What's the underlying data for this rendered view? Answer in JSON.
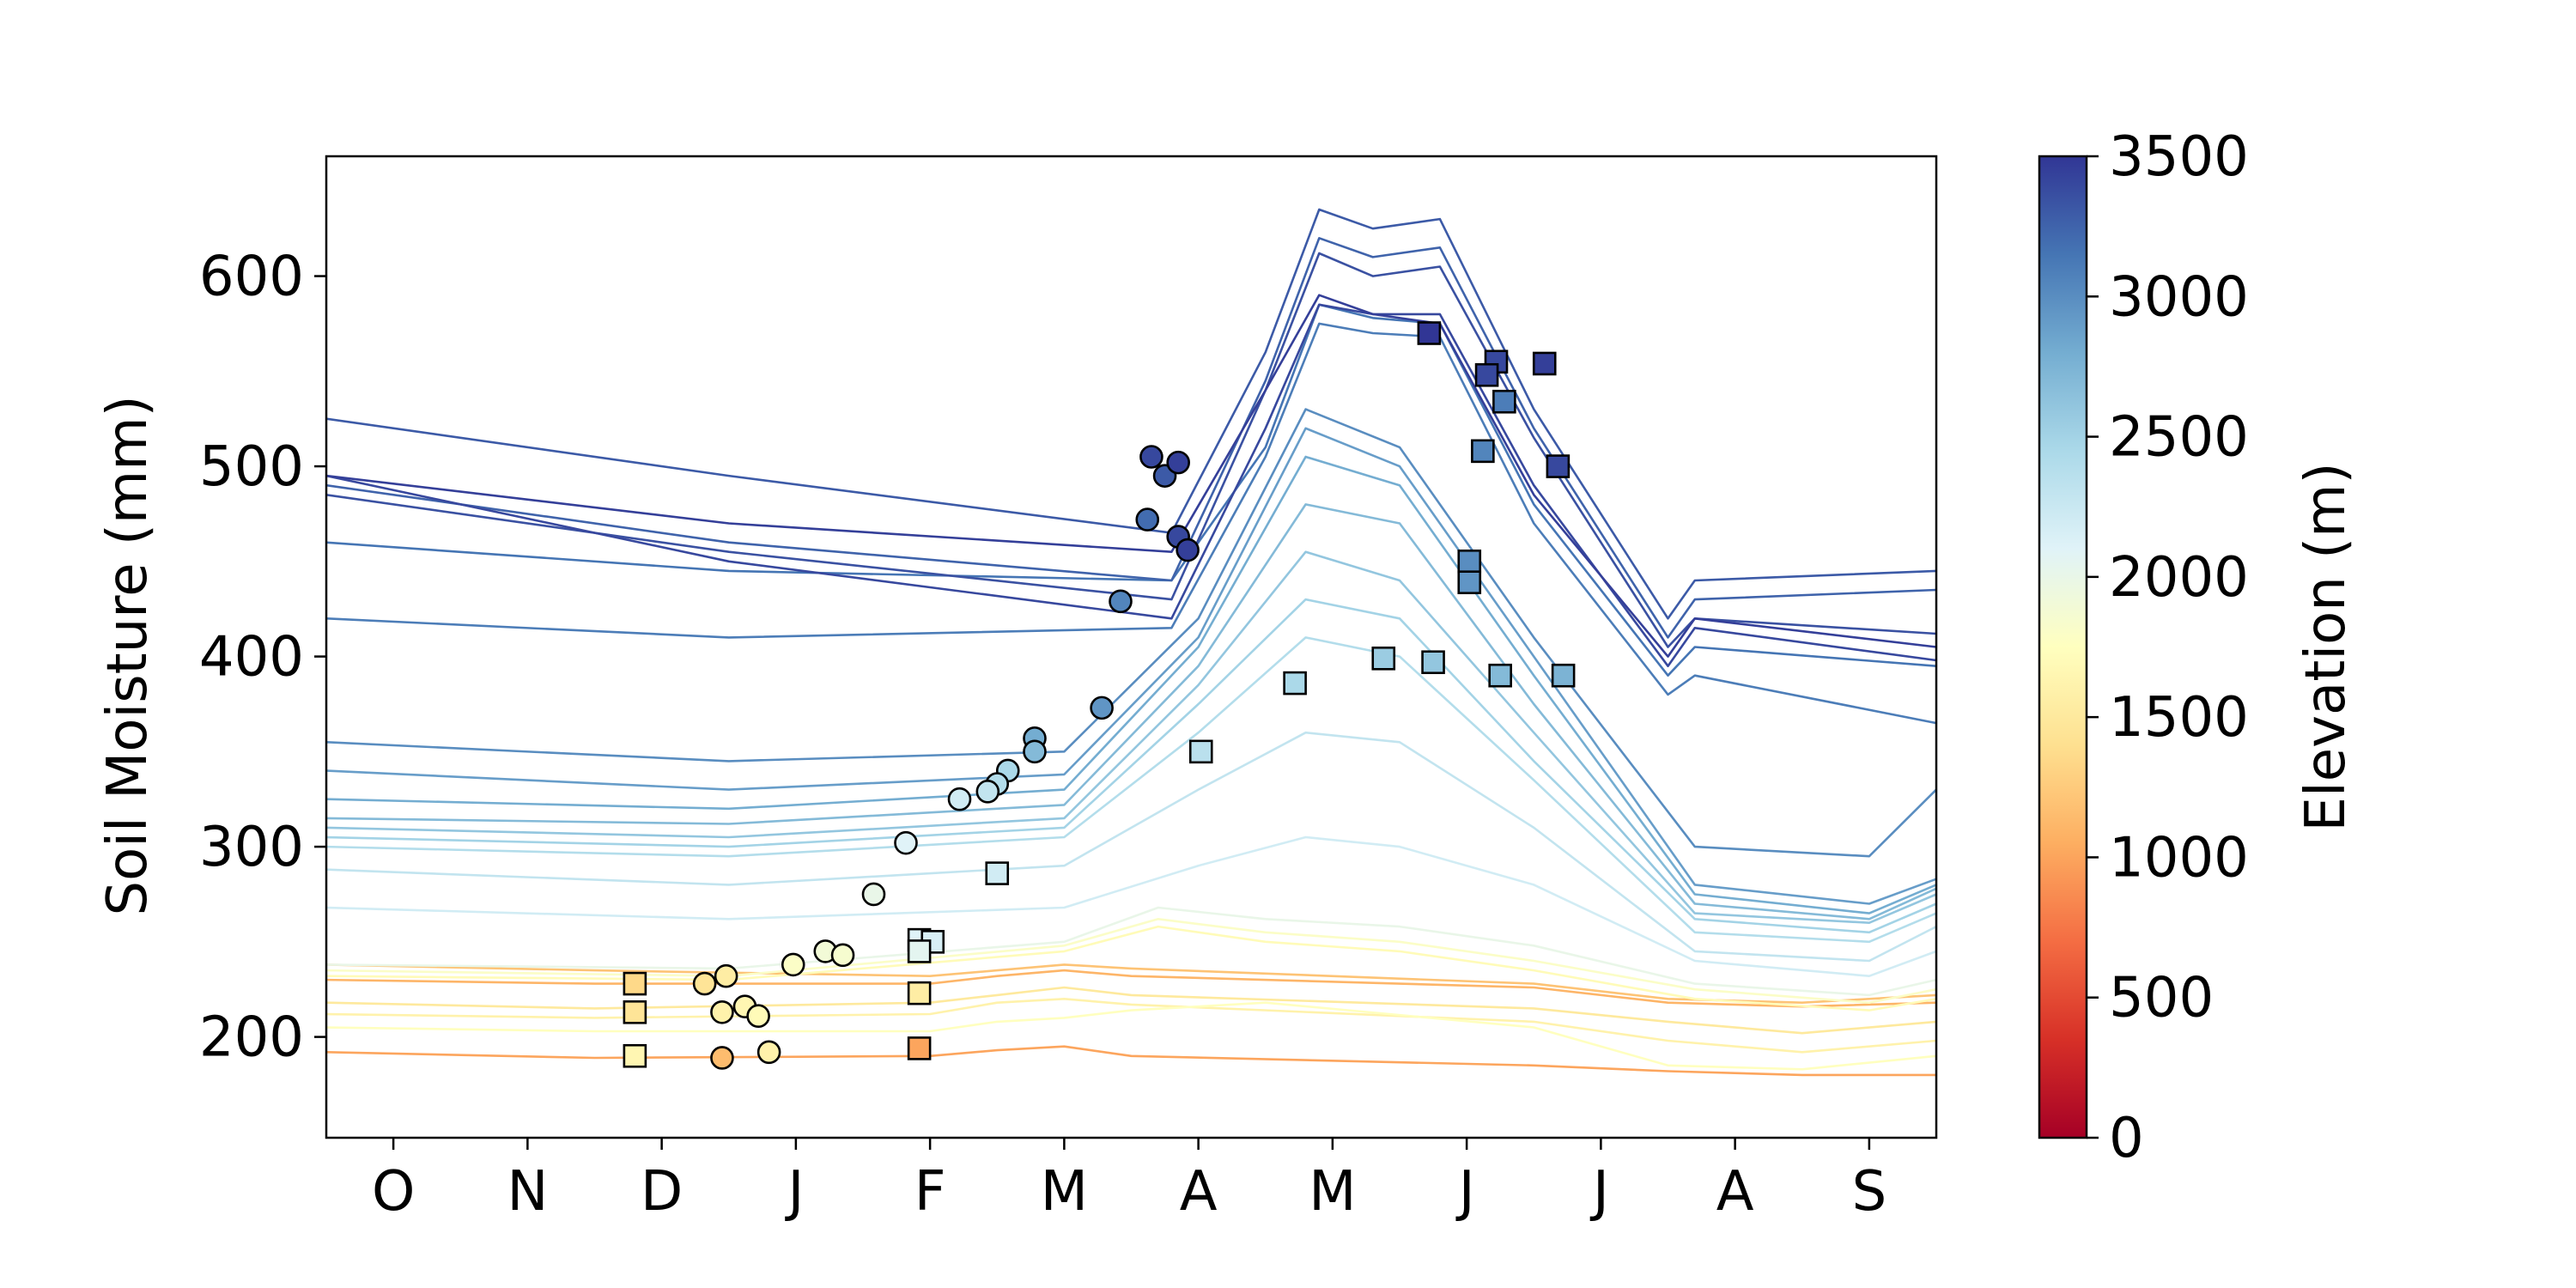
{
  "chart_data": {
    "type": "line",
    "title": "",
    "xlabel": "",
    "ylabel": "Soil Moisture (mm)",
    "x_tick_labels": [
      "O",
      "N",
      "D",
      "J",
      "F",
      "M",
      "A",
      "M",
      "J",
      "J",
      "A",
      "S"
    ],
    "x_tick_months": [
      0.5,
      1.5,
      2.5,
      3.5,
      4.5,
      5.5,
      6.5,
      7.5,
      8.5,
      9.5,
      10.5,
      11.5
    ],
    "xlim": [
      0,
      12
    ],
    "y_ticks": [
      200,
      300,
      400,
      500,
      600
    ],
    "ylim": [
      147,
      663
    ],
    "grid": false,
    "colorbar": {
      "label": "Elevation (m)",
      "ticks": [
        0,
        500,
        1000,
        1500,
        2000,
        2500,
        3000,
        3500
      ],
      "range": [
        0,
        3500
      ],
      "colormap": "RdYlBu",
      "colors": [
        "#a50026",
        "#d73027",
        "#f46d43",
        "#fdae61",
        "#fee090",
        "#ffffbf",
        "#e0f3f8",
        "#abd9e9",
        "#74add1",
        "#4575b4",
        "#313695"
      ]
    },
    "lines": [
      {
        "elevation": 3450,
        "m": [
          0,
          3,
          6.3,
          7,
          7.4,
          7.8,
          8.3,
          9.0,
          10.0,
          10.2,
          12
        ],
        "v": [
          495,
          470,
          455,
          540,
          590,
          580,
          575,
          485,
          400,
          420,
          405
        ]
      },
      {
        "elevation": 3300,
        "m": [
          0,
          3,
          6.3,
          7,
          7.4,
          7.8,
          8.3,
          9.0,
          10.0,
          10.2,
          12
        ],
        "v": [
          525,
          495,
          465,
          560,
          635,
          625,
          630,
          530,
          420,
          440,
          445
        ]
      },
      {
        "elevation": 3250,
        "m": [
          0,
          3,
          6.3,
          7,
          7.4,
          7.8,
          8.3,
          9.0,
          10.0,
          10.2,
          12
        ],
        "v": [
          490,
          460,
          440,
          545,
          620,
          610,
          615,
          520,
          410,
          430,
          435
        ]
      },
      {
        "elevation": 3350,
        "m": [
          0,
          3,
          6.3,
          7,
          7.4,
          7.8,
          8.3,
          9.0,
          10.0,
          10.2,
          12
        ],
        "v": [
          485,
          455,
          430,
          540,
          612,
          600,
          605,
          515,
          405,
          420,
          412
        ]
      },
      {
        "elevation": 3400,
        "m": [
          0,
          3,
          6.3,
          7,
          7.4,
          7.8,
          8.3,
          9.0,
          10.0,
          10.2,
          12
        ],
        "v": [
          495,
          450,
          420,
          520,
          585,
          580,
          580,
          490,
          395,
          415,
          398
        ]
      },
      {
        "elevation": 3150,
        "m": [
          0,
          3,
          6.3,
          7,
          7.4,
          7.8,
          8.3,
          9.0,
          10.0,
          10.2,
          12
        ],
        "v": [
          460,
          445,
          440,
          510,
          585,
          578,
          575,
          480,
          390,
          405,
          395
        ]
      },
      {
        "elevation": 3100,
        "m": [
          0,
          3,
          6.3,
          7,
          7.4,
          7.8,
          8.3,
          9.0,
          10.0,
          10.2,
          12
        ],
        "v": [
          420,
          410,
          415,
          505,
          575,
          570,
          568,
          470,
          380,
          390,
          365
        ]
      },
      {
        "elevation": 3000,
        "m": [
          0,
          3,
          5.5,
          6.5,
          7.3,
          8.0,
          9.0,
          10.2,
          11.5,
          12
        ],
        "v": [
          355,
          345,
          350,
          420,
          530,
          510,
          410,
          300,
          295,
          330
        ]
      },
      {
        "elevation": 2900,
        "m": [
          0,
          3,
          5.5,
          6.5,
          7.3,
          8.0,
          9.0,
          10.2,
          11.5,
          12
        ],
        "v": [
          340,
          330,
          338,
          410,
          520,
          500,
          400,
          280,
          270,
          283
        ]
      },
      {
        "elevation": 2800,
        "m": [
          0,
          3,
          5.5,
          6.5,
          7.3,
          8.0,
          9.0,
          10.2,
          11.5,
          12
        ],
        "v": [
          325,
          320,
          330,
          405,
          505,
          490,
          390,
          275,
          265,
          280
        ]
      },
      {
        "elevation": 2700,
        "m": [
          0,
          3,
          5.5,
          6.5,
          7.3,
          8.0,
          9.0,
          10.2,
          11.5,
          12
        ],
        "v": [
          315,
          312,
          322,
          395,
          480,
          470,
          375,
          270,
          262,
          278
        ]
      },
      {
        "elevation": 2600,
        "m": [
          0,
          3,
          5.5,
          6.5,
          7.3,
          8.0,
          9.0,
          10.2,
          11.5,
          12
        ],
        "v": [
          310,
          305,
          315,
          385,
          455,
          440,
          360,
          265,
          260,
          275
        ]
      },
      {
        "elevation": 2500,
        "m": [
          0,
          3,
          5.5,
          6.5,
          7.3,
          8.0,
          9.0,
          10.2,
          11.5,
          12
        ],
        "v": [
          305,
          300,
          310,
          375,
          430,
          420,
          345,
          262,
          255,
          270
        ]
      },
      {
        "elevation": 2400,
        "m": [
          0,
          3,
          5.5,
          6.5,
          7.3,
          8.0,
          9.0,
          10.2,
          11.5,
          12
        ],
        "v": [
          300,
          295,
          305,
          360,
          410,
          400,
          335,
          255,
          250,
          265
        ]
      },
      {
        "elevation": 2300,
        "m": [
          0,
          3,
          5.5,
          6.5,
          7.3,
          8.0,
          9.0,
          10.2,
          11.5,
          12
        ],
        "v": [
          288,
          280,
          290,
          330,
          360,
          355,
          310,
          245,
          240,
          258
        ]
      },
      {
        "elevation": 2200,
        "m": [
          0,
          3,
          5.5,
          6.5,
          7.3,
          8.0,
          9.0,
          10.2,
          11.5,
          12
        ],
        "v": [
          268,
          262,
          268,
          290,
          305,
          300,
          280,
          240,
          232,
          245
        ]
      },
      {
        "elevation": 2000,
        "m": [
          0,
          3,
          5.5,
          6.2,
          7.0,
          8.0,
          9.0,
          10.2,
          11.5,
          12
        ],
        "v": [
          238,
          236,
          250,
          268,
          262,
          258,
          248,
          228,
          222,
          230
        ]
      },
      {
        "elevation": 1800,
        "m": [
          0,
          3,
          5.5,
          6.2,
          7.0,
          8.0,
          9.0,
          10.2,
          11.5,
          12
        ],
        "v": [
          235,
          232,
          248,
          262,
          255,
          250,
          240,
          225,
          218,
          225
        ]
      },
      {
        "elevation": 1700,
        "m": [
          0,
          3,
          5.5,
          6.2,
          7.0,
          8.0,
          9.0,
          10.2,
          11.5,
          12
        ],
        "v": [
          232,
          230,
          245,
          258,
          250,
          245,
          235,
          220,
          214,
          220
        ]
      },
      {
        "elevation": 1200,
        "m": [
          0,
          2,
          4.5,
          5.0,
          5.5,
          6.0,
          9.0,
          10.0,
          11.0,
          12
        ],
        "v": [
          238,
          235,
          232,
          235,
          238,
          236,
          228,
          220,
          218,
          222
        ]
      },
      {
        "elevation": 1100,
        "m": [
          0,
          2,
          4.5,
          5.0,
          5.5,
          6.0,
          9.0,
          10.0,
          11.0,
          12
        ],
        "v": [
          230,
          228,
          228,
          232,
          235,
          232,
          226,
          218,
          216,
          218
        ]
      },
      {
        "elevation": 1500,
        "m": [
          0,
          2,
          4.5,
          5.0,
          5.5,
          6.0,
          9.0,
          10.0,
          11.0,
          12
        ],
        "v": [
          218,
          215,
          218,
          222,
          226,
          222,
          215,
          208,
          202,
          208
        ]
      },
      {
        "elevation": 1600,
        "m": [
          0,
          2,
          4.5,
          5.0,
          5.5,
          6.0,
          9.0,
          10.0,
          11.0,
          12
        ],
        "v": [
          212,
          210,
          212,
          218,
          220,
          217,
          208,
          198,
          192,
          198
        ]
      },
      {
        "elevation": 1750,
        "m": [
          0,
          2,
          4.5,
          5.0,
          5.5,
          6.0,
          7.0,
          9.0,
          10.0,
          11.0,
          12
        ],
        "v": [
          205,
          203,
          203,
          208,
          210,
          214,
          218,
          205,
          185,
          183,
          190
        ]
      },
      {
        "elevation": 1000,
        "m": [
          0,
          2,
          4.5,
          5.0,
          5.5,
          6.0,
          9.0,
          10.0,
          11.0,
          12
        ],
        "v": [
          192,
          189,
          190,
          193,
          195,
          190,
          185,
          182,
          180,
          180
        ]
      }
    ],
    "markers": [
      {
        "shape": "circle",
        "m": 6.15,
        "v": 505,
        "elevation": 3400
      },
      {
        "shape": "circle",
        "m": 6.25,
        "v": 495,
        "elevation": 3300
      },
      {
        "shape": "circle",
        "m": 6.35,
        "v": 502,
        "elevation": 3450
      },
      {
        "shape": "circle",
        "m": 6.12,
        "v": 472,
        "elevation": 3200
      },
      {
        "shape": "circle",
        "m": 6.35,
        "v": 463,
        "elevation": 3400
      },
      {
        "shape": "circle",
        "m": 6.42,
        "v": 456,
        "elevation": 3450
      },
      {
        "shape": "circle",
        "m": 5.92,
        "v": 429,
        "elevation": 3050
      },
      {
        "shape": "circle",
        "m": 5.78,
        "v": 373,
        "elevation": 2950
      },
      {
        "shape": "circle",
        "m": 5.28,
        "v": 357,
        "elevation": 2800
      },
      {
        "shape": "circle",
        "m": 5.28,
        "v": 350,
        "elevation": 2700
      },
      {
        "shape": "circle",
        "m": 5.08,
        "v": 340,
        "elevation": 2450
      },
      {
        "shape": "circle",
        "m": 5.0,
        "v": 333,
        "elevation": 2400
      },
      {
        "shape": "circle",
        "m": 4.93,
        "v": 329,
        "elevation": 2300
      },
      {
        "shape": "circle",
        "m": 4.72,
        "v": 325,
        "elevation": 2200
      },
      {
        "shape": "circle",
        "m": 4.32,
        "v": 302,
        "elevation": 2100
      },
      {
        "shape": "circle",
        "m": 4.08,
        "v": 275,
        "elevation": 2000
      },
      {
        "shape": "circle",
        "m": 3.72,
        "v": 245,
        "elevation": 1900
      },
      {
        "shape": "circle",
        "m": 3.85,
        "v": 243,
        "elevation": 1850
      },
      {
        "shape": "circle",
        "m": 3.48,
        "v": 238,
        "elevation": 1800
      },
      {
        "shape": "circle",
        "m": 2.98,
        "v": 232,
        "elevation": 1550
      },
      {
        "shape": "circle",
        "m": 2.82,
        "v": 228,
        "elevation": 1450
      },
      {
        "shape": "circle",
        "m": 3.12,
        "v": 216,
        "elevation": 1650
      },
      {
        "shape": "circle",
        "m": 2.95,
        "v": 213,
        "elevation": 1600
      },
      {
        "shape": "circle",
        "m": 3.22,
        "v": 211,
        "elevation": 1700
      },
      {
        "shape": "circle",
        "m": 2.95,
        "v": 189,
        "elevation": 1150
      },
      {
        "shape": "circle",
        "m": 3.3,
        "v": 192,
        "elevation": 1600
      },
      {
        "shape": "square",
        "m": 8.22,
        "v": 570,
        "elevation": 3500
      },
      {
        "shape": "square",
        "m": 8.72,
        "v": 555,
        "elevation": 3400
      },
      {
        "shape": "square",
        "m": 9.08,
        "v": 554,
        "elevation": 3450
      },
      {
        "shape": "square",
        "m": 8.65,
        "v": 548,
        "elevation": 3400
      },
      {
        "shape": "square",
        "m": 8.78,
        "v": 534,
        "elevation": 3100
      },
      {
        "shape": "square",
        "m": 8.62,
        "v": 508,
        "elevation": 3050
      },
      {
        "shape": "square",
        "m": 9.18,
        "v": 500,
        "elevation": 3400
      },
      {
        "shape": "square",
        "m": 8.52,
        "v": 450,
        "elevation": 3000
      },
      {
        "shape": "square",
        "m": 8.52,
        "v": 439,
        "elevation": 2950
      },
      {
        "shape": "square",
        "m": 7.88,
        "v": 399,
        "elevation": 2550
      },
      {
        "shape": "square",
        "m": 8.25,
        "v": 397,
        "elevation": 2600
      },
      {
        "shape": "square",
        "m": 8.75,
        "v": 390,
        "elevation": 2700
      },
      {
        "shape": "square",
        "m": 9.22,
        "v": 390,
        "elevation": 2750
      },
      {
        "shape": "square",
        "m": 7.22,
        "v": 386,
        "elevation": 2450
      },
      {
        "shape": "square",
        "m": 6.52,
        "v": 350,
        "elevation": 2350
      },
      {
        "shape": "square",
        "m": 5.0,
        "v": 286,
        "elevation": 2200
      },
      {
        "shape": "square",
        "m": 4.42,
        "v": 251,
        "elevation": 2100
      },
      {
        "shape": "square",
        "m": 4.52,
        "v": 250,
        "elevation": 2150
      },
      {
        "shape": "square",
        "m": 4.42,
        "v": 245,
        "elevation": 2050
      },
      {
        "shape": "square",
        "m": 2.3,
        "v": 228,
        "elevation": 1350
      },
      {
        "shape": "square",
        "m": 4.42,
        "v": 223,
        "elevation": 1550
      },
      {
        "shape": "square",
        "m": 2.3,
        "v": 213,
        "elevation": 1450
      },
      {
        "shape": "square",
        "m": 2.3,
        "v": 190,
        "elevation": 1650
      },
      {
        "shape": "square",
        "m": 4.42,
        "v": 194,
        "elevation": 1000
      }
    ]
  }
}
